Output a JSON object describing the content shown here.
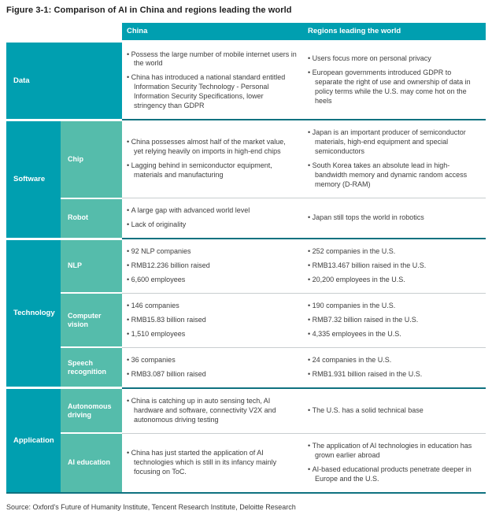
{
  "title": "Figure 3-1: Comparison of AI in China and regions leading the world",
  "source": "Source: Oxford's Future of Humanity Institute, Tencent Research Institute, Deloitte Research",
  "colors": {
    "teal": "#009FB0",
    "light_teal": "#55BCAB",
    "divider": "#0F7280",
    "body_text": "#3D3D3D"
  },
  "header": {
    "china": "China",
    "world": "Regions leading the world"
  },
  "sections": [
    {
      "label": "Data",
      "rows": [
        {
          "sub": "",
          "china": [
            "Possess the large number of mobile internet users in the world",
            "China has introduced a national standard entitled Information Security Technology - Personal Information Security Specifications, lower stringency than GDPR"
          ],
          "world": [
            "Users focus more on personal privacy",
            "European governments introduced GDPR to separate the right of use and ownership of data in policy terms while the U.S. may come hot on the heels"
          ]
        }
      ]
    },
    {
      "label": "Software",
      "rows": [
        {
          "sub": "Chip",
          "china": [
            "China possesses almost half of the market value, yet relying heavily on imports in high-end chips",
            "Lagging behind in semiconductor equipment, materials and manufacturing"
          ],
          "world": [
            "Japan is an important producer of semiconductor materials, high-end equipment and special semiconductors",
            "South Korea takes an absolute lead in high-bandwidth memory and dynamic random access memory (D-RAM)"
          ]
        },
        {
          "sub": "Robot",
          "china": [
            "A large gap with advanced world level",
            "Lack of originality"
          ],
          "world": [
            "Japan still tops the world in robotics"
          ]
        }
      ]
    },
    {
      "label": "Technology",
      "rows": [
        {
          "sub": "NLP",
          "china": [
            "92 NLP companies",
            "RMB12.236 billion raised",
            "6,600 employees"
          ],
          "world": [
            "252 companies in the U.S.",
            "RMB13.467 billion raised in the U.S.",
            "20,200 employees in the U.S."
          ]
        },
        {
          "sub": "Computer vision",
          "china": [
            "146 companies",
            "RMB15.83 billion raised",
            "1,510 employees"
          ],
          "world": [
            "190 companies in the U.S.",
            "RMB7.32 billion raised in the U.S.",
            "4,335 employees in the U.S."
          ]
        },
        {
          "sub": "Speech recognition",
          "china": [
            "36 companies",
            "RMB3.087 billion raised"
          ],
          "world": [
            "24 companies in the U.S.",
            "RMB1.931 billion raised in the U.S."
          ]
        }
      ]
    },
    {
      "label": "Application",
      "rows": [
        {
          "sub": "Autonomous driving",
          "china": [
            "China is catching up in auto sensing tech, AI hardware and software, connectivity V2X and autonomous driving testing"
          ],
          "world": [
            "The U.S. has a solid technical base"
          ]
        },
        {
          "sub": "AI education",
          "china": [
            "China has just started the application of AI technologies which is still in its infancy mainly focusing on ToC."
          ],
          "world": [
            "The application of AI technologies in education has grown earlier abroad",
            "AI-based educational products penetrate deeper in Europe and the U.S."
          ]
        }
      ]
    }
  ]
}
